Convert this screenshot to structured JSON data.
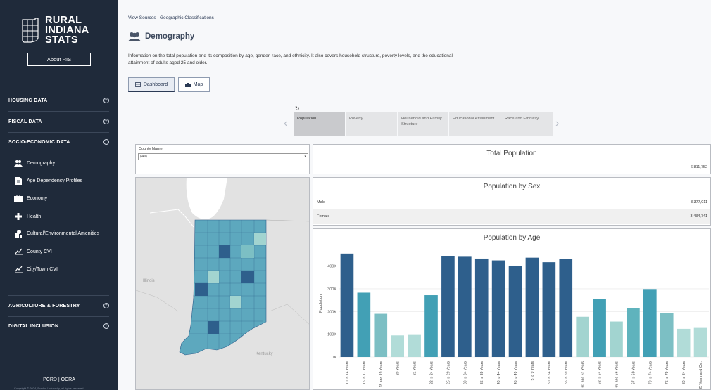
{
  "sidebar": {
    "logo_lines": [
      "RURAL",
      "INDIANA",
      "STATS"
    ],
    "about_label": "About RIS",
    "sections": [
      {
        "label": "HOUSING DATA",
        "toggle": "+"
      },
      {
        "label": "FISCAL DATA",
        "toggle": "+"
      },
      {
        "label": "SOCIO-ECONOMIC DATA",
        "toggle": "−"
      },
      {
        "label": "AGRICULTURE & FORESTRY",
        "toggle": "+"
      },
      {
        "label": "DIGITAL INCLUSION",
        "toggle": "+"
      }
    ],
    "items": [
      {
        "label": "Demography",
        "icon": "people-icon"
      },
      {
        "label": "Age Dependency Profiles",
        "icon": "document-icon"
      },
      {
        "label": "Economy",
        "icon": "briefcase-icon"
      },
      {
        "label": "Health",
        "icon": "cross-icon"
      },
      {
        "label": "Cultural/Environmental Amenities",
        "icon": "amenities-icon"
      },
      {
        "label": "County CVI",
        "icon": "line-chart-icon"
      },
      {
        "label": "City/Town CVI",
        "icon": "line-chart-icon"
      }
    ],
    "footer": "PCRD | OCRA",
    "copyright": "Copyright © 2024, Purdue University, all rights reserved"
  },
  "header": {
    "link_sources": "View Sources",
    "link_sep": "|",
    "link_geo": "Geographic Classifications",
    "title": "Demography",
    "description": "Information on the total population and its composition by age, gender, race, and ethnicity. It also covers household structure, poverty levels, and the educational attainment of adults aged 25 and older."
  },
  "view_tabs": [
    {
      "label": "Dashboard",
      "icon": "table-icon",
      "active": true
    },
    {
      "label": "Map",
      "icon": "bar-chart-icon",
      "active": false
    }
  ],
  "carousel": {
    "refresh_icon": "↻",
    "prev": "‹",
    "next": "›",
    "tabs": [
      "Population",
      "Poverty",
      "Household and Family Structure",
      "Educational Attainment",
      "Race and Ethnicity"
    ]
  },
  "filter": {
    "label": "County Name",
    "value": "(All)"
  },
  "total_population": {
    "title": "Total Population",
    "value": "6,811,752"
  },
  "population_by_sex": {
    "title": "Population by Sex",
    "rows": [
      {
        "label": "Male",
        "value": "3,377,011"
      },
      {
        "label": "Female",
        "value": "3,434,741"
      }
    ]
  },
  "map": {
    "labels": [
      "Illinois",
      "Kentucky"
    ]
  },
  "chart_data": {
    "type": "bar",
    "title": "Population by Age",
    "ylabel": "Population",
    "xlabel": "",
    "ylim": [
      0,
      470000
    ],
    "yticks": [
      "0K",
      "100K",
      "200K",
      "300K",
      "400K"
    ],
    "categories": [
      "10 to 14 Years",
      "15 to 17 Years",
      "18 and 19 Years",
      "20 Years",
      "21 Years",
      "22 to 24 Years",
      "25 to 29 Years",
      "30 to 34 Years",
      "35 to 39 Years",
      "40 to 44 Years",
      "45 to 49 Years",
      "5 to 9 Years",
      "50 to 54 Years",
      "55 to 59 Years",
      "60 and 61 Years",
      "62 to 64 Years",
      "65 and 66 Years",
      "67 to 69 Years",
      "70 to 74 Years",
      "75 to 79 Years",
      "80 to 84 Years",
      "85 Years and Ov.."
    ],
    "values": [
      455000,
      283000,
      190000,
      95000,
      97000,
      272000,
      445000,
      441000,
      433000,
      425000,
      402000,
      437000,
      417000,
      432000,
      177000,
      256000,
      156000,
      216000,
      299000,
      194000,
      124000,
      128000
    ],
    "colors": [
      "#2e5f8c",
      "#42a0b5",
      "#7cbfc4",
      "#b1dcd8",
      "#b1dcd8",
      "#42a0b5",
      "#2e5f8c",
      "#2e5f8c",
      "#2e5f8c",
      "#2e5f8c",
      "#2e5f8c",
      "#2e5f8c",
      "#2e5f8c",
      "#2e5f8c",
      "#a2d4d0",
      "#42a0b5",
      "#a2d4d0",
      "#5fb3bd",
      "#42a0b5",
      "#7cbfc4",
      "#b1dcd8",
      "#b1dcd8"
    ]
  }
}
